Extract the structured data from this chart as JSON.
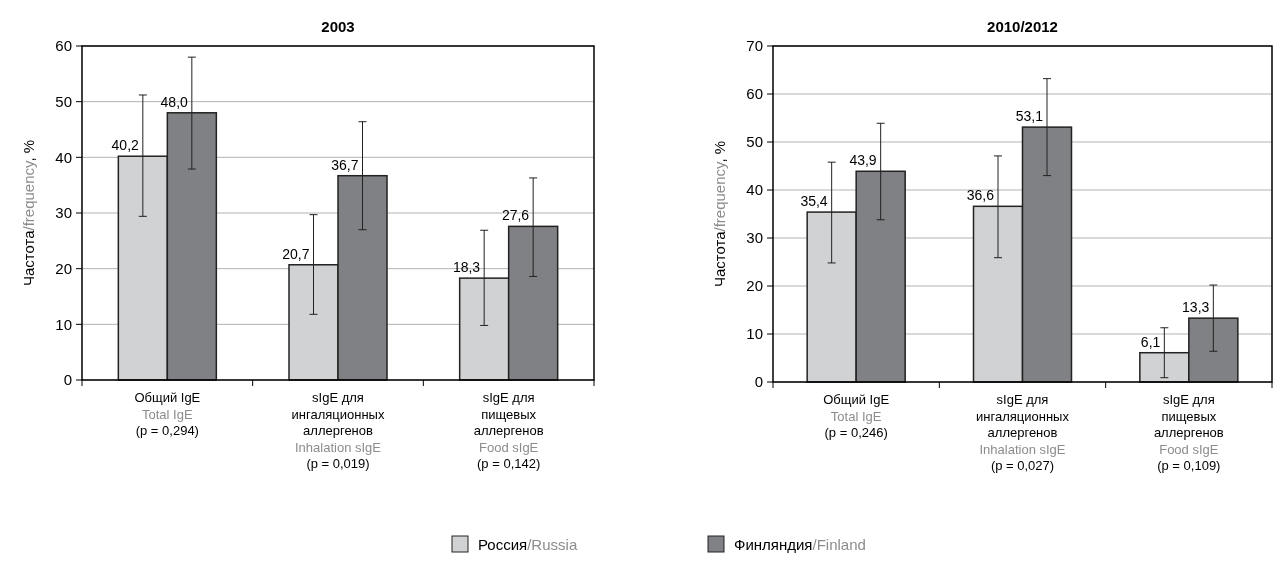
{
  "chart_data": [
    {
      "type": "bar",
      "title": "2003",
      "ylabel": "Частота/frequency, %",
      "categories": [
        "Общий IgE\nTotal IgE\n(p = 0,294)",
        "sIgE для\nингаляционных\nаллергенов\nInhalation sIgE\n(p = 0,019)",
        "sIgE для\nпищевых\nаллергенов\nFood sIgE\n(p = 0,142)"
      ],
      "series": [
        {
          "color": "#d1d2d4",
          "values": [
            40.2,
            20.7,
            18.3
          ],
          "value_labels": [
            "40,2",
            "20,7",
            "18,3"
          ],
          "errors": [
            [
              29.4,
              51.2
            ],
            [
              11.8,
              29.7
            ],
            [
              9.8,
              26.9
            ]
          ]
        },
        {
          "color": "#808184",
          "values": [
            48.0,
            36.7,
            27.6
          ],
          "value_labels": [
            "48,0",
            "36,7",
            "27,6"
          ],
          "errors": [
            [
              37.9,
              58.0
            ],
            [
              27.0,
              46.4
            ],
            [
              18.6,
              36.3
            ]
          ]
        }
      ],
      "ylim": [
        0,
        60
      ],
      "yticks": [
        0,
        10,
        20,
        30,
        40,
        50,
        60
      ],
      "grid": "y"
    },
    {
      "type": "bar",
      "title": "2010/2012",
      "ylabel": "Частота/frequency, %",
      "categories": [
        "Общий IgE\nTotal IgE\n(p = 0,246)",
        "sIgE для\nингаляционных\nаллергенов\nInhalation sIgE\n(p = 0,027)",
        "sIgE для\nпищевых\nаллергенов\nFood sIgE\n(p = 0,109)"
      ],
      "series": [
        {
          "name": "Россия/Russia",
          "color": "#d1d2d4",
          "values": [
            35.4,
            36.6,
            6.1
          ],
          "value_labels": [
            "35,4",
            "36,6",
            "6,1"
          ],
          "errors": [
            [
              24.8,
              45.8
            ],
            [
              25.9,
              47.1
            ],
            [
              0.9,
              11.3
            ]
          ]
        },
        {
          "name": "Финляндия/Finland",
          "color": "#808184",
          "values": [
            43.9,
            53.1,
            13.3
          ],
          "value_labels": [
            "43,9",
            "53,1",
            "13,3"
          ],
          "errors": [
            [
              33.8,
              53.9
            ],
            [
              43.0,
              63.2
            ],
            [
              6.4,
              20.2
            ]
          ]
        }
      ],
      "ylim": [
        0,
        70
      ],
      "yticks": [
        0,
        10,
        20,
        30,
        40,
        50,
        60,
        70
      ],
      "grid": "y",
      "legend": "bottom"
    }
  ]
}
